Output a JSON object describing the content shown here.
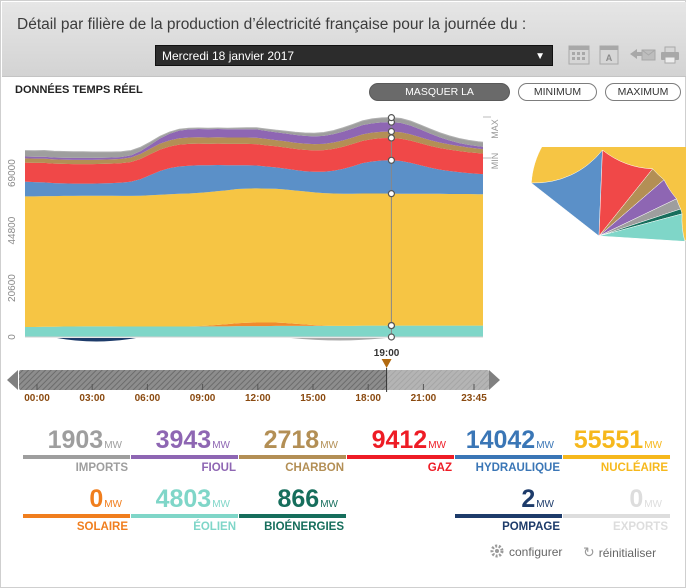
{
  "header": {
    "title": "Détail par filière de la production d’électricité française pour la journée du :",
    "date_value": "Mercredi 18 janvier 2017"
  },
  "view": {
    "label": "DONNÉES TEMPS RÉEL",
    "toggle_repartition": "MASQUER LA RÉPARTITION",
    "toggle_minimum": "MINIMUM",
    "toggle_maximum": "MAXIMUM",
    "max_label": "MAX",
    "min_label": "MIN"
  },
  "colors": {
    "imports": "#9e9e9e",
    "fioul": "#8e66b3",
    "charbon": "#b38f55",
    "gaz": "#f04848",
    "hydraulique": "#5b90c8",
    "nucleaire": "#f6c544",
    "solaire": "#f08a2e",
    "eolien": "#7fd6c8",
    "bioenergies": "#166e5c",
    "pompage": "#1d3b6a",
    "exports": "#dddddd"
  },
  "chart_data": [
    {
      "type": "area",
      "x": [
        "00:00",
        "00:30",
        "01:00",
        "01:30",
        "02:00",
        "02:30",
        "03:00",
        "03:30",
        "04:00",
        "04:30",
        "05:00",
        "05:30",
        "06:00",
        "06:30",
        "07:00",
        "07:30",
        "08:00",
        "08:30",
        "09:00",
        "09:30",
        "10:00",
        "10:30",
        "11:00",
        "11:30",
        "12:00",
        "12:30",
        "13:00",
        "13:30",
        "14:00",
        "14:30",
        "15:00",
        "15:30",
        "16:00",
        "16:30",
        "17:00",
        "17:30",
        "18:00",
        "18:30",
        "19:00",
        "19:30",
        "20:00",
        "20:30",
        "21:00",
        "21:30",
        "22:00",
        "22:30",
        "23:00",
        "23:30",
        "23:45"
      ],
      "xticks": [
        "00:00",
        "03:00",
        "06:00",
        "09:00",
        "12:00",
        "15:00",
        "18:00",
        "21:00",
        "23:45"
      ],
      "yticks": [
        0,
        20600,
        44800,
        69000
      ],
      "ylim": [
        0,
        88000
      ],
      "current_time": "19:00",
      "series": [
        {
          "name": "ÉOLIEN",
          "values": [
            4200,
            4200,
            4300,
            4300,
            4400,
            4400,
            4500,
            4500,
            4500,
            4500,
            4400,
            4400,
            4400,
            4400,
            4400,
            4400,
            4400,
            4400,
            4500,
            4500,
            4500,
            4500,
            4600,
            4600,
            4600,
            4600,
            4700,
            4700,
            4700,
            4700,
            4700,
            4700,
            4700,
            4700,
            4700,
            4800,
            4800,
            4800,
            4803,
            4800,
            4800,
            4800,
            4800,
            4800,
            4800,
            4800,
            4800,
            4800,
            4800
          ]
        },
        {
          "name": "SOLAIRE",
          "values": [
            0,
            0,
            0,
            0,
            0,
            0,
            0,
            0,
            0,
            0,
            0,
            0,
            0,
            0,
            0,
            0,
            0,
            0,
            100,
            300,
            600,
            900,
            1200,
            1400,
            1500,
            1500,
            1400,
            1200,
            900,
            600,
            300,
            100,
            0,
            0,
            0,
            0,
            0,
            0,
            0,
            0,
            0,
            0,
            0,
            0,
            0,
            0,
            0,
            0,
            0
          ]
        },
        {
          "name": "NUCLÉAIRE",
          "values": [
            55000,
            55000,
            55000,
            55000,
            55000,
            55000,
            55000,
            55000,
            55000,
            55000,
            55000,
            55000,
            55100,
            55300,
            55500,
            55700,
            55900,
            56000,
            56100,
            56200,
            56300,
            56400,
            56500,
            56500,
            56500,
            56400,
            56300,
            56200,
            56100,
            56000,
            55900,
            55800,
            55700,
            55600,
            55600,
            55600,
            55600,
            55600,
            55551,
            55500,
            55500,
            55500,
            55500,
            55500,
            55400,
            55400,
            55400,
            55300,
            55300
          ]
        },
        {
          "name": "HYDRAULIQUE",
          "values": [
            6200,
            6000,
            5800,
            5500,
            5300,
            5200,
            5100,
            5100,
            5200,
            5300,
            5600,
            6000,
            7000,
            8500,
            10000,
            11000,
            11500,
            11700,
            11600,
            11300,
            11000,
            10500,
            10000,
            9800,
            9600,
            9300,
            9000,
            8800,
            8600,
            8500,
            8700,
            9000,
            9600,
            10500,
            11600,
            12800,
            13500,
            13900,
            14042,
            13800,
            13000,
            12000,
            11000,
            10200,
            9700,
            9200,
            8800,
            8600,
            8500
          ]
        },
        {
          "name": "GAZ",
          "values": [
            8000,
            8100,
            8200,
            8200,
            8200,
            8200,
            8200,
            8200,
            8200,
            8200,
            8200,
            8300,
            8500,
            8800,
            9000,
            9100,
            9200,
            9200,
            9100,
            9000,
            9000,
            9000,
            9000,
            9000,
            9000,
            8900,
            8900,
            8900,
            8900,
            9000,
            9000,
            9100,
            9200,
            9300,
            9400,
            9400,
            9412,
            9412,
            9412,
            9400,
            9400,
            9300,
            9200,
            9100,
            9000,
            8900,
            8800,
            8700,
            8600
          ]
        },
        {
          "name": "CHARBON",
          "values": [
            1800,
            1800,
            1800,
            1800,
            1800,
            1800,
            1800,
            1800,
            1800,
            1800,
            1800,
            1900,
            2100,
            2300,
            2500,
            2600,
            2700,
            2700,
            2700,
            2700,
            2700,
            2700,
            2700,
            2700,
            2700,
            2700,
            2600,
            2600,
            2600,
            2600,
            2600,
            2600,
            2700,
            2700,
            2700,
            2700,
            2718,
            2718,
            2718,
            2700,
            2600,
            2500,
            2400,
            2300,
            2200,
            2100,
            2000,
            1900,
            1900
          ]
        },
        {
          "name": "FIOUL",
          "values": [
            800,
            800,
            800,
            800,
            800,
            800,
            800,
            800,
            800,
            800,
            800,
            900,
            1200,
            1600,
            2200,
            2800,
            3200,
            3400,
            3500,
            3500,
            3500,
            3500,
            3500,
            3500,
            3500,
            3400,
            3300,
            3300,
            3300,
            3300,
            3300,
            3400,
            3500,
            3700,
            3800,
            3900,
            3943,
            3943,
            3943,
            3900,
            3700,
            3300,
            2800,
            2200,
            1700,
            1300,
            1100,
            1000,
            1000
          ]
        },
        {
          "name": "IMPORTS",
          "values": [
            2500,
            2500,
            2600,
            2600,
            2600,
            2600,
            2600,
            2500,
            2400,
            2300,
            2200,
            2000,
            1600,
            1200,
            900,
            700,
            600,
            500,
            400,
            400,
            400,
            400,
            500,
            600,
            700,
            800,
            900,
            1000,
            1100,
            1200,
            1300,
            1400,
            1500,
            1600,
            1700,
            1800,
            1850,
            1900,
            1903,
            1900,
            1900,
            1900,
            1900,
            1900,
            1900,
            1900,
            1900,
            1900,
            1900
          ]
        }
      ]
    },
    {
      "type": "pie",
      "labels": [
        "NUCLÉAIRE",
        "HYDRAULIQUE",
        "GAZ",
        "CHARBON",
        "FIOUL",
        "IMPORTS",
        "BIOÉNERGIES",
        "ÉOLIEN"
      ],
      "values": [
        55551,
        14042,
        9412,
        2718,
        3943,
        1903,
        866,
        4803
      ],
      "colors": [
        "#f6c544",
        "#5b90c8",
        "#f04848",
        "#b38f55",
        "#8e66b3",
        "#9e9e9e",
        "#166e5c",
        "#7fd6c8"
      ]
    }
  ],
  "stats": [
    {
      "value": "1903",
      "unit": "MW",
      "label": "IMPORTS",
      "color": "#9e9e9e"
    },
    {
      "value": "3943",
      "unit": "MW",
      "label": "FIOUL",
      "color": "#8e66b3"
    },
    {
      "value": "2718",
      "unit": "MW",
      "label": "CHARBON",
      "color": "#b38f55"
    },
    {
      "value": "9412",
      "unit": "MW",
      "label": "GAZ",
      "color": "#ee1c25"
    },
    {
      "value": "14042",
      "unit": "MW",
      "label": "HYDRAULIQUE",
      "color": "#3a76b6"
    },
    {
      "value": "55551",
      "unit": "MW",
      "label": "NUCLÉAIRE",
      "color": "#f6b81c"
    },
    {
      "value": "0",
      "unit": "MW",
      "label": "SOLAIRE",
      "color": "#f07e1e"
    },
    {
      "value": "4803",
      "unit": "MW",
      "label": "ÉOLIEN",
      "color": "#7fd6c8"
    },
    {
      "value": "866",
      "unit": "MW",
      "label": "BIOÉNERGIES",
      "color": "#166e5c"
    },
    {
      "value": "2",
      "unit": "MW",
      "label": "POMPAGE",
      "color": "#1d3b6a"
    },
    {
      "value": "0",
      "unit": "MW",
      "label": "EXPORTS",
      "color": "#dddddd"
    }
  ],
  "footer": {
    "configure": "configurer",
    "reset": "réinitialiser"
  }
}
